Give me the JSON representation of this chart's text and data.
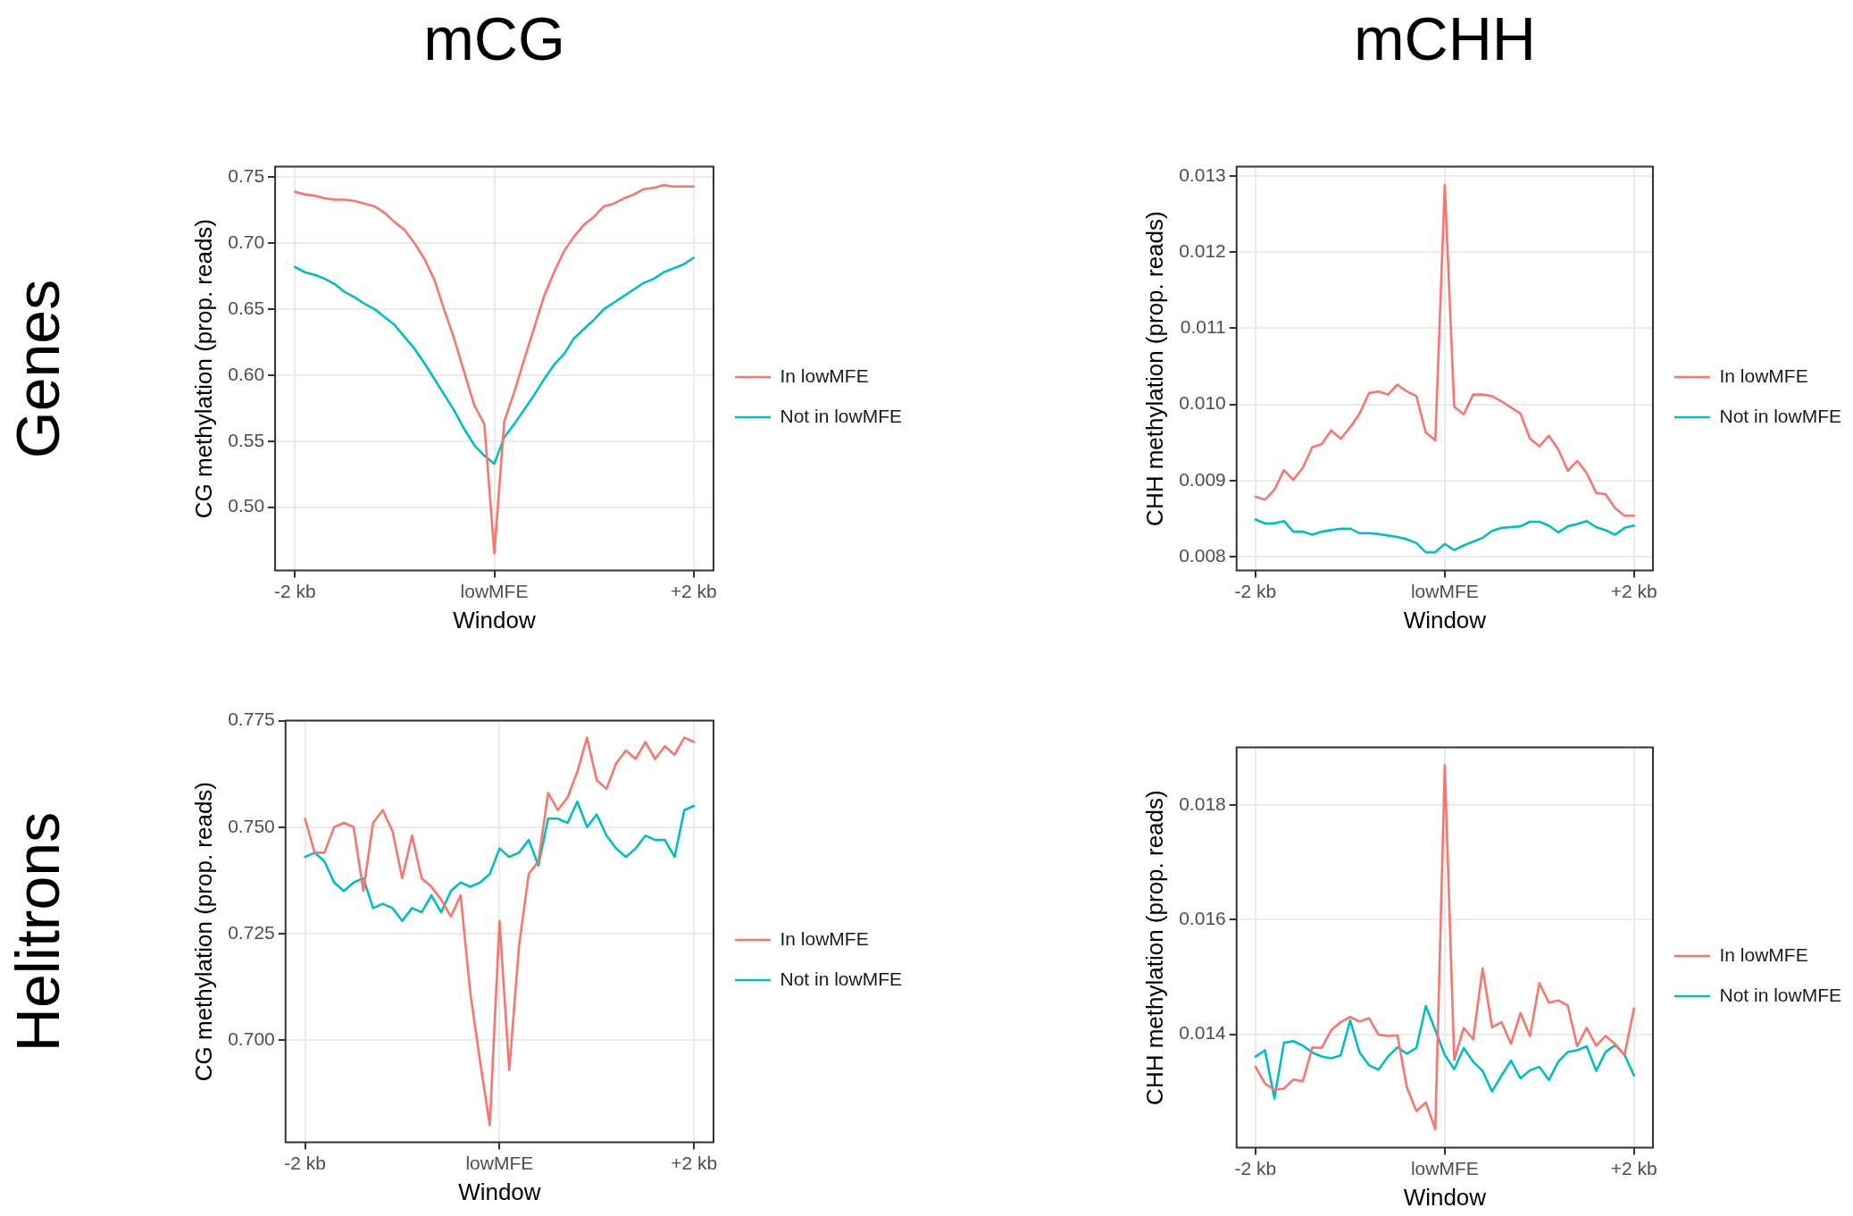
{
  "chart_data": [
    {
      "type": "line",
      "title": "mCG",
      "annotations": [
        "Genes"
      ],
      "xlabel": "Window",
      "ylabel": "CG methylation (prop. reads)",
      "legend": "right",
      "grid": true,
      "x": [
        -2,
        -1.9,
        -1.8,
        -1.7,
        -1.6,
        -1.5,
        -1.4,
        -1.3,
        -1.2,
        -1.1,
        -1,
        -0.9,
        -0.8,
        -0.7,
        -0.6,
        -0.5,
        -0.4,
        -0.3,
        -0.2,
        -0.1,
        0,
        0.1,
        0.2,
        0.3,
        0.4,
        0.5,
        0.6,
        0.7,
        0.8,
        0.9,
        1,
        1.1,
        1.2,
        1.3,
        1.4,
        1.5,
        1.6,
        1.7,
        1.8,
        1.9,
        2
      ],
      "xlim": [
        -2.2,
        2.2
      ],
      "xticks": [
        {
          "value": -2,
          "label": "-2 kb"
        },
        {
          "value": 0,
          "label": "lowMFE"
        },
        {
          "value": 2,
          "label": "+2 kb"
        }
      ],
      "ylim": [
        0.452,
        0.758
      ],
      "yticks": [
        {
          "value": 0.5,
          "label": "0.50"
        },
        {
          "value": 0.55,
          "label": "0.55"
        },
        {
          "value": 0.6,
          "label": "0.60"
        },
        {
          "value": 0.65,
          "label": "0.65"
        },
        {
          "value": 0.7,
          "label": "0.70"
        },
        {
          "value": 0.75,
          "label": "0.75"
        }
      ],
      "series": [
        {
          "name": "In lowMFE",
          "color": "#f8766d",
          "values": [
            0.739,
            0.737,
            0.736,
            0.734,
            0.733,
            0.733,
            0.732,
            0.73,
            0.728,
            0.723,
            0.716,
            0.71,
            0.7,
            0.688,
            0.672,
            0.649,
            0.627,
            0.602,
            0.577,
            0.563,
            0.465,
            0.565,
            0.587,
            0.612,
            0.636,
            0.66,
            0.678,
            0.694,
            0.705,
            0.714,
            0.72,
            0.728,
            0.73,
            0.734,
            0.737,
            0.741,
            0.742,
            0.744,
            0.743,
            0.743,
            0.743
          ]
        },
        {
          "name": "Not in lowMFE",
          "color": "#00bfc4",
          "values": [
            0.682,
            0.678,
            0.676,
            0.673,
            0.669,
            0.663,
            0.659,
            0.654,
            0.65,
            0.644,
            0.638,
            0.629,
            0.62,
            0.609,
            0.597,
            0.585,
            0.573,
            0.559,
            0.547,
            0.539,
            0.533,
            0.553,
            0.563,
            0.574,
            0.585,
            0.597,
            0.608,
            0.616,
            0.628,
            0.635,
            0.642,
            0.65,
            0.655,
            0.66,
            0.665,
            0.67,
            0.673,
            0.678,
            0.681,
            0.684,
            0.689
          ]
        }
      ]
    },
    {
      "type": "line",
      "title": "mCHH",
      "xlabel": "Window",
      "ylabel": "CHH methylation (prop. reads)",
      "legend": "right",
      "grid": true,
      "x": [
        -2,
        -1.9,
        -1.8,
        -1.7,
        -1.6,
        -1.5,
        -1.4,
        -1.3,
        -1.2,
        -1.1,
        -1,
        -0.9,
        -0.8,
        -0.7,
        -0.6,
        -0.5,
        -0.4,
        -0.3,
        -0.2,
        -0.1,
        0,
        0.1,
        0.2,
        0.3,
        0.4,
        0.5,
        0.6,
        0.7,
        0.8,
        0.9,
        1,
        1.1,
        1.2,
        1.3,
        1.4,
        1.5,
        1.6,
        1.7,
        1.8,
        1.9,
        2
      ],
      "xlim": [
        -2.2,
        2.2
      ],
      "xticks": [
        {
          "value": -2,
          "label": "-2 kb"
        },
        {
          "value": 0,
          "label": "lowMFE"
        },
        {
          "value": 2,
          "label": "+2 kb"
        }
      ],
      "ylim": [
        0.00782,
        0.01312
      ],
      "yticks": [
        0.008,
        0.009,
        {
          "value": 0.01,
          "label": "0.010"
        },
        0.011,
        0.012,
        0.013
      ],
      "series": [
        {
          "name": "In lowMFE",
          "color": "#f8766d",
          "values": [
            0.00879,
            0.00875,
            0.00888,
            0.00914,
            0.00901,
            0.00917,
            0.00944,
            0.00948,
            0.00966,
            0.00955,
            0.0097,
            0.00988,
            0.01015,
            0.01017,
            0.01013,
            0.01026,
            0.01017,
            0.01011,
            0.00963,
            0.00953,
            0.01288,
            0.00997,
            0.00987,
            0.01013,
            0.01013,
            0.01011,
            0.01004,
            0.00996,
            0.00988,
            0.00955,
            0.00945,
            0.00959,
            0.00941,
            0.00913,
            0.00926,
            0.0091,
            0.00884,
            0.00882,
            0.00864,
            0.00854,
            0.00854
          ]
        },
        {
          "name": "Not in lowMFE",
          "color": "#00bfc4",
          "values": [
            0.00849,
            0.00844,
            0.00844,
            0.00847,
            0.00833,
            0.00833,
            0.00829,
            0.00833,
            0.00835,
            0.00837,
            0.00837,
            0.00831,
            0.00831,
            0.0083,
            0.00828,
            0.00826,
            0.00823,
            0.00818,
            0.00806,
            0.00806,
            0.00817,
            0.00809,
            0.00815,
            0.0082,
            0.00825,
            0.00834,
            0.00838,
            0.00839,
            0.0084,
            0.00846,
            0.00846,
            0.00841,
            0.00832,
            0.0084,
            0.00843,
            0.00847,
            0.00839,
            0.00835,
            0.00829,
            0.00838,
            0.00841
          ]
        }
      ]
    },
    {
      "type": "line",
      "annotations": [
        "Helitrons"
      ],
      "xlabel": "Window",
      "ylabel": "CG methylation (prop. reads)",
      "legend": "right",
      "grid": true,
      "x": [
        -2,
        -1.9,
        -1.8,
        -1.7,
        -1.6,
        -1.5,
        -1.4,
        -1.3,
        -1.2,
        -1.1,
        -1,
        -0.9,
        -0.8,
        -0.7,
        -0.6,
        -0.5,
        -0.4,
        -0.3,
        -0.2,
        -0.1,
        0,
        0.1,
        0.2,
        0.3,
        0.4,
        0.5,
        0.6,
        0.7,
        0.8,
        0.9,
        1,
        1.1,
        1.2,
        1.3,
        1.4,
        1.5,
        1.6,
        1.7,
        1.8,
        1.9,
        2
      ],
      "xlim": [
        -2.2,
        2.2
      ],
      "xticks": [
        {
          "value": -2,
          "label": "-2 kb"
        },
        {
          "value": 0,
          "label": "lowMFE"
        },
        {
          "value": 2,
          "label": "+2 kb"
        }
      ],
      "ylim": [
        0.676,
        0.775
      ],
      "yticks": [
        {
          "value": 0.7,
          "label": "0.700"
        },
        {
          "value": 0.725,
          "label": "0.725"
        },
        {
          "value": 0.75,
          "label": "0.750"
        },
        {
          "value": 0.775,
          "label": "0.775"
        }
      ],
      "series": [
        {
          "name": "In lowMFE",
          "color": "#f8766d",
          "values": [
            0.752,
            0.744,
            0.744,
            0.75,
            0.751,
            0.75,
            0.735,
            0.751,
            0.754,
            0.749,
            0.738,
            0.748,
            0.738,
            0.736,
            0.733,
            0.729,
            0.734,
            0.711,
            0.695,
            0.68,
            0.728,
            0.693,
            0.722,
            0.739,
            0.742,
            0.758,
            0.754,
            0.757,
            0.763,
            0.771,
            0.761,
            0.759,
            0.765,
            0.768,
            0.766,
            0.77,
            0.766,
            0.769,
            0.767,
            0.771,
            0.77
          ]
        },
        {
          "name": "Not in lowMFE",
          "color": "#00bfc4",
          "values": [
            0.743,
            0.744,
            0.742,
            0.737,
            0.735,
            0.737,
            0.738,
            0.731,
            0.732,
            0.731,
            0.728,
            0.731,
            0.73,
            0.734,
            0.73,
            0.735,
            0.737,
            0.736,
            0.737,
            0.739,
            0.745,
            0.743,
            0.744,
            0.747,
            0.741,
            0.752,
            0.752,
            0.751,
            0.756,
            0.75,
            0.753,
            0.748,
            0.745,
            0.743,
            0.745,
            0.748,
            0.747,
            0.747,
            0.743,
            0.754,
            0.755
          ]
        }
      ]
    },
    {
      "type": "line",
      "xlabel": "Window",
      "ylabel": "CHH methylation (prop. reads)",
      "legend": "right",
      "grid": true,
      "x": [
        -2,
        -1.9,
        -1.8,
        -1.7,
        -1.6,
        -1.5,
        -1.4,
        -1.3,
        -1.2,
        -1.1,
        -1,
        -0.9,
        -0.8,
        -0.7,
        -0.6,
        -0.5,
        -0.4,
        -0.3,
        -0.2,
        -0.1,
        0,
        0.1,
        0.2,
        0.3,
        0.4,
        0.5,
        0.6,
        0.7,
        0.8,
        0.9,
        1,
        1.1,
        1.2,
        1.3,
        1.4,
        1.5,
        1.6,
        1.7,
        1.8,
        1.9,
        2
      ],
      "xlim": [
        -2.2,
        2.2
      ],
      "xticks": [
        {
          "value": -2,
          "label": "-2 kb"
        },
        {
          "value": 0,
          "label": "lowMFE"
        },
        {
          "value": 2,
          "label": "+2 kb"
        }
      ],
      "ylim": [
        0.01202,
        0.019
      ],
      "yticks": [
        0.014,
        0.016,
        0.018
      ],
      "series": [
        {
          "name": "In lowMFE",
          "color": "#f8766d",
          "values": [
            0.01343,
            0.01314,
            0.01303,
            0.01305,
            0.01321,
            0.01318,
            0.01377,
            0.01376,
            0.01407,
            0.01421,
            0.0143,
            0.01422,
            0.01428,
            0.01399,
            0.01397,
            0.01398,
            0.01307,
            0.01266,
            0.01281,
            0.01234,
            0.01869,
            0.01355,
            0.01411,
            0.01391,
            0.01515,
            0.01412,
            0.01421,
            0.01383,
            0.01437,
            0.01397,
            0.01489,
            0.01455,
            0.01459,
            0.0145,
            0.01379,
            0.01411,
            0.0138,
            0.01397,
            0.01383,
            0.01364,
            0.01445
          ]
        },
        {
          "name": "Not in lowMFE",
          "color": "#00bfc4",
          "values": [
            0.01361,
            0.01372,
            0.01288,
            0.01385,
            0.01388,
            0.0138,
            0.01368,
            0.01361,
            0.01358,
            0.01363,
            0.01424,
            0.01368,
            0.01346,
            0.01338,
            0.01361,
            0.01377,
            0.01366,
            0.01376,
            0.01449,
            0.01407,
            0.01364,
            0.01339,
            0.01376,
            0.01352,
            0.01336,
            0.013,
            0.01328,
            0.01354,
            0.01323,
            0.01337,
            0.01343,
            0.0132,
            0.01352,
            0.01369,
            0.01372,
            0.01379,
            0.01336,
            0.01369,
            0.01381,
            0.01364,
            0.01328
          ]
        }
      ]
    }
  ]
}
